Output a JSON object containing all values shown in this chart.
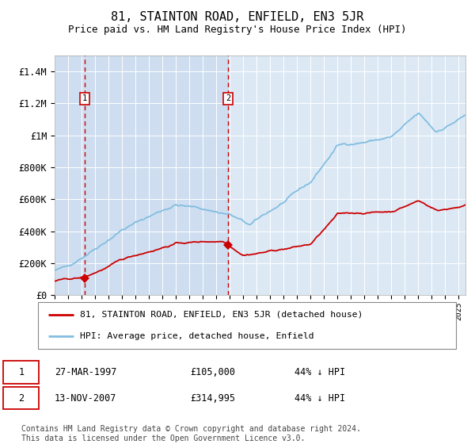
{
  "title": "81, STAINTON ROAD, ENFIELD, EN3 5JR",
  "subtitle": "Price paid vs. HM Land Registry's House Price Index (HPI)",
  "title_fontsize": 11,
  "subtitle_fontsize": 9,
  "bg_color": "#dce9f5",
  "hpi_color": "#82bde0",
  "price_color": "#cc0000",
  "vline_color": "#cc0000",
  "legend_label_price": "81, STAINTON ROAD, ENFIELD, EN3 5JR (detached house)",
  "legend_label_hpi": "HPI: Average price, detached house, Enfield",
  "sale1_date": "27-MAR-1997",
  "sale1_price": "£105,000",
  "sale1_info": "44% ↓ HPI",
  "sale2_date": "13-NOV-2007",
  "sale2_price": "£314,995",
  "sale2_info": "44% ↓ HPI",
  "footer": "Contains HM Land Registry data © Crown copyright and database right 2024.\nThis data is licensed under the Open Government Licence v3.0.",
  "ylim": [
    0,
    1500000
  ],
  "yticks": [
    0,
    200000,
    400000,
    600000,
    800000,
    1000000,
    1200000,
    1400000
  ],
  "ytick_labels": [
    "£0",
    "£200K",
    "£400K",
    "£600K",
    "£800K",
    "£1M",
    "£1.2M",
    "£1.4M"
  ],
  "sale1_x": 1997.23,
  "sale1_y": 105000,
  "sale2_x": 2007.87,
  "sale2_y": 314995,
  "xlim_left": 1995,
  "xlim_right": 2025.5
}
